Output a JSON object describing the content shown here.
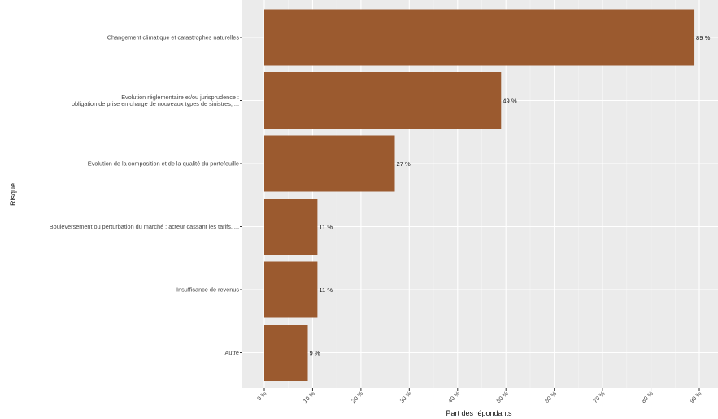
{
  "chart_data": {
    "type": "bar",
    "orientation": "horizontal",
    "title": "",
    "xlabel": "Part des répondants",
    "ylabel": "Risque",
    "categories": [
      [
        "Changement climatique et catastrophes naturelles"
      ],
      [
        "Evolution réglementaire et/ou jurisprudence :",
        "obligation de prise en charge de nouveaux types de sinistres, ..."
      ],
      [
        "Evolution de la composition et de la qualité du portefeuille"
      ],
      [
        "Bouleversement ou perturbation du marché : acteur cassant les tarifs, ..."
      ],
      [
        "Insuffisance de revenus"
      ],
      [
        "Autre"
      ]
    ],
    "values": [
      89,
      49,
      27,
      11,
      11,
      9
    ],
    "data_labels": [
      "89 %",
      "49 %",
      "27 %",
      "11 %",
      "11 %",
      "9 %"
    ],
    "xlim": [
      0,
      90
    ],
    "xticks": [
      0,
      10,
      20,
      30,
      40,
      50,
      60,
      70,
      80,
      90
    ],
    "xtick_labels": [
      "0 %",
      "10 %",
      "20 %",
      "30 %",
      "40 %",
      "50 %",
      "60 %",
      "70 %",
      "80 %",
      "90 %"
    ],
    "grid": true,
    "legend": "none",
    "colors": {
      "bar": "#9b5a2f",
      "panel": "#ebebeb",
      "grid": "#ffffff"
    }
  }
}
